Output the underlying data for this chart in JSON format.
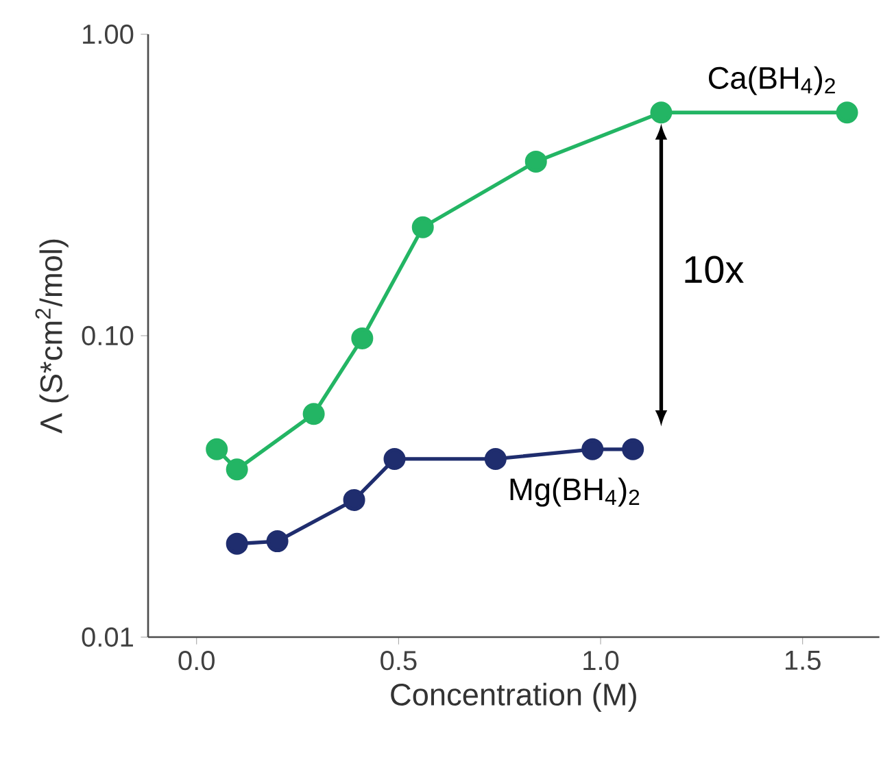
{
  "chart_data": {
    "type": "line",
    "xlabel": "Concentration (M)",
    "ylabel": "Λ (S*cm$^{2}$/mol)",
    "log": "y",
    "xlim": [
      -0.12,
      1.69
    ],
    "ylim": [
      0.01,
      1
    ],
    "xticks": [
      {
        "value": 0,
        "label": "0.0"
      },
      {
        "value": 0.5,
        "label": "0.5"
      },
      {
        "value": 1,
        "label": "1.0"
      },
      {
        "value": 1.5,
        "label": "1.5"
      }
    ],
    "yticks": [
      {
        "value": 0.01,
        "label": "0.01"
      },
      {
        "value": 0.1,
        "label": "0.10"
      },
      {
        "value": 1,
        "label": "1.00"
      }
    ],
    "grid": false,
    "legend": false,
    "marker": "circle",
    "line_style": "solid",
    "series": [
      {
        "name": "Ca(BH$_{4}$)$_{2}$",
        "color": "#23b564",
        "x": [
          0.05,
          0.1,
          0.29,
          0.41,
          0.56,
          0.84,
          1.15,
          1.61
        ],
        "values": [
          0.042,
          0.036,
          0.055,
          0.098,
          0.229,
          0.378,
          0.55,
          0.55
        ]
      },
      {
        "name": "Mg(BH$_{4}$)$_{2}$",
        "color": "#1f2d6e",
        "x": [
          0.1,
          0.2,
          0.39,
          0.49,
          0.74,
          0.98,
          1.08
        ],
        "values": [
          0.0204,
          0.0208,
          0.0285,
          0.039,
          0.039,
          0.042,
          0.042
        ]
      }
    ],
    "annotations": [
      "10x"
    ]
  }
}
